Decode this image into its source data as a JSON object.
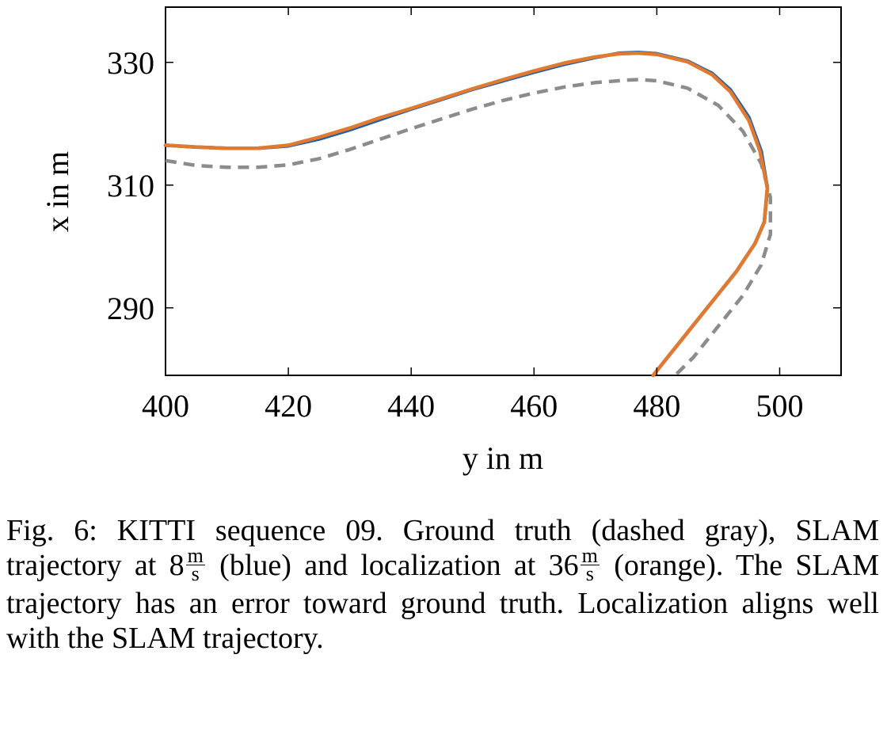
{
  "chart_data": {
    "type": "line",
    "xlabel": "y in m",
    "ylabel": "x in m",
    "xlim": [
      400,
      510
    ],
    "ylim": [
      279,
      339
    ],
    "xticks": [
      400,
      420,
      440,
      460,
      480,
      500
    ],
    "yticks": [
      290,
      310,
      330
    ],
    "grid": false,
    "series": [
      {
        "name": "Ground truth",
        "style": "dashed",
        "color": "#8c8c8c",
        "points": [
          [
            400,
            314
          ],
          [
            405,
            313.2
          ],
          [
            410,
            312.9
          ],
          [
            415,
            312.9
          ],
          [
            420,
            313.3
          ],
          [
            425,
            314.3
          ],
          [
            430,
            315.8
          ],
          [
            435,
            317.5
          ],
          [
            440,
            319.2
          ],
          [
            445,
            320.8
          ],
          [
            450,
            322.4
          ],
          [
            455,
            323.8
          ],
          [
            460,
            325
          ],
          [
            465,
            326
          ],
          [
            470,
            326.7
          ],
          [
            475,
            327.1
          ],
          [
            477,
            327.2
          ],
          [
            480,
            327
          ],
          [
            485,
            325.8
          ],
          [
            490,
            323
          ],
          [
            494,
            318.8
          ],
          [
            497,
            313.5
          ],
          [
            498.5,
            308
          ],
          [
            498.5,
            302
          ],
          [
            497,
            297
          ],
          [
            494,
            292
          ],
          [
            490,
            287
          ],
          [
            486,
            282
          ],
          [
            483,
            279
          ]
        ]
      },
      {
        "name": "SLAM trajectory at 8 m/s",
        "style": "solid",
        "color": "#1f5fa8",
        "points": [
          [
            400,
            316.5
          ],
          [
            405,
            316.2
          ],
          [
            410,
            316
          ],
          [
            415,
            316
          ],
          [
            420,
            316.4
          ],
          [
            425,
            317.5
          ],
          [
            430,
            319
          ],
          [
            435,
            320.7
          ],
          [
            440,
            322.4
          ],
          [
            445,
            324
          ],
          [
            450,
            325.6
          ],
          [
            455,
            327
          ],
          [
            460,
            328.4
          ],
          [
            465,
            329.7
          ],
          [
            470,
            330.8
          ],
          [
            474,
            331.5
          ],
          [
            477,
            331.6
          ],
          [
            480,
            331.4
          ],
          [
            485,
            330.2
          ],
          [
            489,
            328.2
          ],
          [
            492,
            325.5
          ],
          [
            495,
            321
          ],
          [
            497,
            315.5
          ],
          [
            498,
            309.5
          ],
          [
            497.5,
            304
          ],
          [
            496,
            300.5
          ],
          [
            493,
            296
          ],
          [
            489,
            291
          ],
          [
            485,
            286
          ],
          [
            481,
            281
          ],
          [
            479.4,
            279
          ]
        ]
      },
      {
        "name": "Localization at 36 m/s",
        "style": "solid",
        "color": "#e07a30",
        "points": [
          [
            400,
            316.5
          ],
          [
            405,
            316.2
          ],
          [
            410,
            316
          ],
          [
            415,
            316
          ],
          [
            420,
            316.5
          ],
          [
            425,
            317.8
          ],
          [
            430,
            319.3
          ],
          [
            435,
            321
          ],
          [
            440,
            322.5
          ],
          [
            445,
            324.1
          ],
          [
            450,
            325.7
          ],
          [
            455,
            327.2
          ],
          [
            460,
            328.6
          ],
          [
            465,
            329.9
          ],
          [
            470,
            330.9
          ],
          [
            474,
            331.4
          ],
          [
            477,
            331.5
          ],
          [
            480,
            331.3
          ],
          [
            485,
            330.1
          ],
          [
            489,
            328
          ],
          [
            492,
            325.2
          ],
          [
            495,
            320.5
          ],
          [
            496.8,
            315.5
          ],
          [
            498,
            309.5
          ],
          [
            497.5,
            304
          ],
          [
            496,
            300.5
          ],
          [
            493,
            296
          ],
          [
            489,
            291
          ],
          [
            485,
            286
          ],
          [
            481,
            281
          ],
          [
            479.4,
            279
          ]
        ]
      }
    ]
  },
  "caption": {
    "part1": "Fig. 6: KITTI sequence 09. Ground truth (dashed gray), SLAM trajectory at ",
    "slam_speed": "8",
    "unit_num": "m",
    "unit_den": "s",
    "part2": " (blue) and localization at ",
    "loc_speed": "36",
    "part3": " (orange). The SLAM trajectory has an error toward ground truth. Localization aligns well with the SLAM trajectory."
  }
}
